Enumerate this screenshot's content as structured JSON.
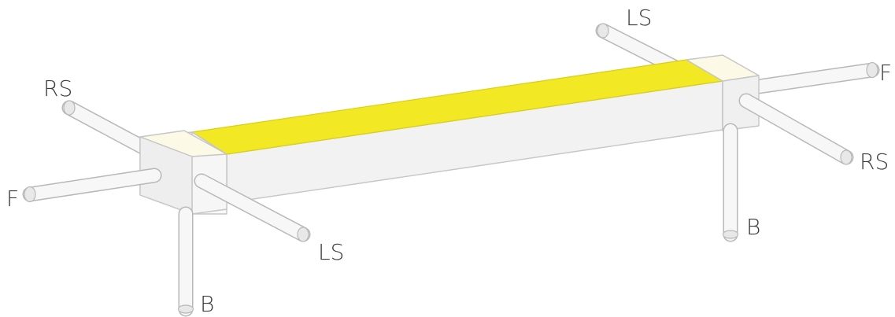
{
  "colors": {
    "highlight": "#f2e824",
    "highlight_edge": "#d9cf16",
    "body_light": "#f9f9f9",
    "body_mid": "#f2f2f2",
    "body_dark": "#eaeaea",
    "block_top": "#fcf9e6",
    "edge": "#c6c6c6",
    "label": "#3c3c3c"
  },
  "labels": {
    "left_end": {
      "rs": "RS",
      "f": "F",
      "ls": "LS",
      "b": "B"
    },
    "right_end": {
      "ls": "LS",
      "f": "F",
      "rs": "RS",
      "b": "B"
    }
  }
}
